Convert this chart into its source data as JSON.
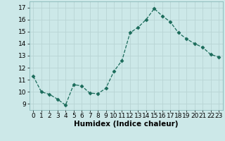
{
  "x": [
    0,
    1,
    2,
    3,
    4,
    5,
    6,
    7,
    8,
    9,
    10,
    11,
    12,
    13,
    14,
    15,
    16,
    17,
    18,
    19,
    20,
    21,
    22,
    23
  ],
  "y": [
    11.3,
    10.0,
    9.8,
    9.4,
    8.9,
    10.6,
    10.5,
    9.9,
    9.85,
    10.3,
    11.7,
    12.6,
    14.9,
    15.35,
    16.0,
    16.9,
    16.3,
    15.8,
    14.9,
    14.4,
    14.0,
    13.7,
    13.1,
    12.9
  ],
  "line_color": "#1a6b5a",
  "marker": "D",
  "marker_size": 2.5,
  "bg_color": "#cce8e8",
  "grid_color": "#b8d4d4",
  "xlabel": "Humidex (Indice chaleur)",
  "xlabel_fontsize": 7.5,
  "ylim": [
    8.5,
    17.5
  ],
  "xlim": [
    -0.5,
    23.5
  ],
  "yticks": [
    9,
    10,
    11,
    12,
    13,
    14,
    15,
    16,
    17
  ],
  "xticks": [
    0,
    1,
    2,
    3,
    4,
    5,
    6,
    7,
    8,
    9,
    10,
    11,
    12,
    13,
    14,
    15,
    16,
    17,
    18,
    19,
    20,
    21,
    22,
    23
  ],
  "tick_fontsize": 6.5
}
